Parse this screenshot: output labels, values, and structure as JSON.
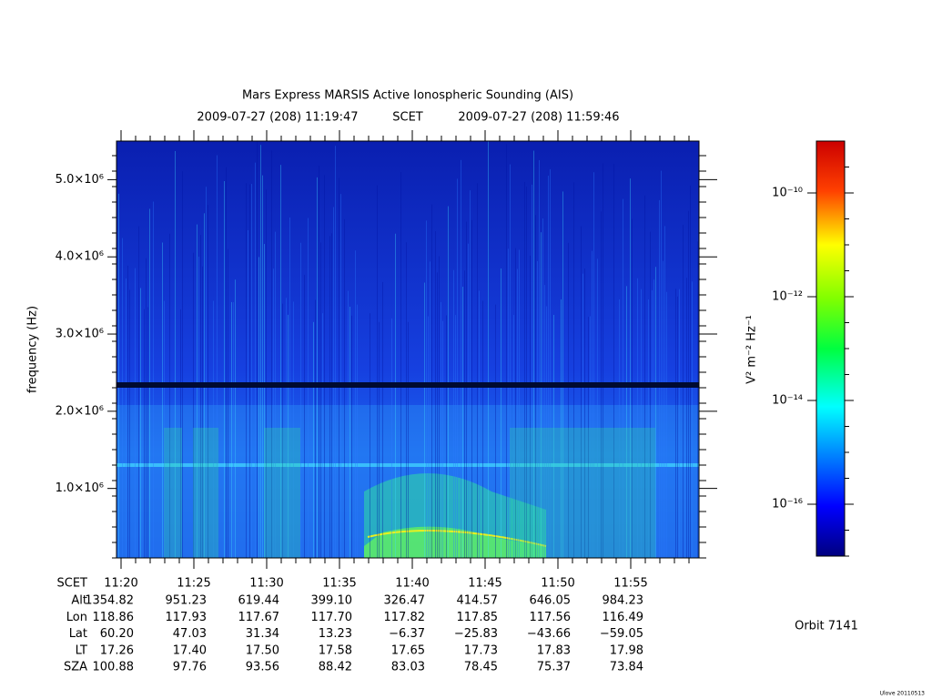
{
  "chart_data": {
    "type": "spectrogram",
    "title": "Mars Express MARSIS Active Ionospheric Sounding (AIS)",
    "time_start": "2009-07-27 (208) 11:19:47",
    "time_system": "SCET",
    "time_end": "2009-07-27 (208) 11:59:46",
    "ylabel": "frequency (Hz)",
    "ylim": [
      100000,
      5500000
    ],
    "yticks": [
      {
        "value": 1000000,
        "label": "1.0×10⁶"
      },
      {
        "value": 2000000,
        "label": "2.0×10⁶"
      },
      {
        "value": 3000000,
        "label": "3.0×10⁶"
      },
      {
        "value": 4000000,
        "label": "4.0×10⁶"
      },
      {
        "value": 5000000,
        "label": "5.0×10⁶"
      }
    ],
    "xlabel": "SCET",
    "categories": [
      "11:20",
      "11:25",
      "11:30",
      "11:35",
      "11:40",
      "11:45",
      "11:50",
      "11:55"
    ],
    "ephemeris": [
      {
        "name": "Alt",
        "values": [
          "1354.82",
          "951.23",
          "619.44",
          "399.10",
          "326.47",
          "414.57",
          "646.05",
          "984.23"
        ]
      },
      {
        "name": "Lon",
        "values": [
          "118.86",
          "117.93",
          "117.67",
          "117.70",
          "117.82",
          "117.85",
          "117.56",
          "116.49"
        ]
      },
      {
        "name": "Lat",
        "values": [
          "60.20",
          "47.03",
          "31.34",
          "13.23",
          "−6.37",
          "−25.83",
          "−43.66",
          "−59.05"
        ]
      },
      {
        "name": "LT",
        "values": [
          "17.26",
          "17.40",
          "17.50",
          "17.58",
          "17.65",
          "17.73",
          "17.83",
          "17.98"
        ]
      },
      {
        "name": "SZA",
        "values": [
          "100.88",
          "97.76",
          "93.56",
          "88.42",
          "83.03",
          "78.45",
          "75.37",
          "73.84"
        ]
      }
    ],
    "colorbar": {
      "label": "V² m⁻² Hz⁻¹",
      "scale": "log",
      "lim": [
        1e-17,
        1e-09
      ],
      "ticks": [
        {
          "value": 1e-10,
          "label": "10⁻¹⁰"
        },
        {
          "value": 1e-12,
          "label": "10⁻¹²"
        },
        {
          "value": 1e-14,
          "label": "10⁻¹⁴"
        },
        {
          "value": 1e-16,
          "label": "10⁻¹⁶"
        }
      ]
    },
    "annotation": "Orbit 7141",
    "footer": "Ulove 20110513"
  }
}
